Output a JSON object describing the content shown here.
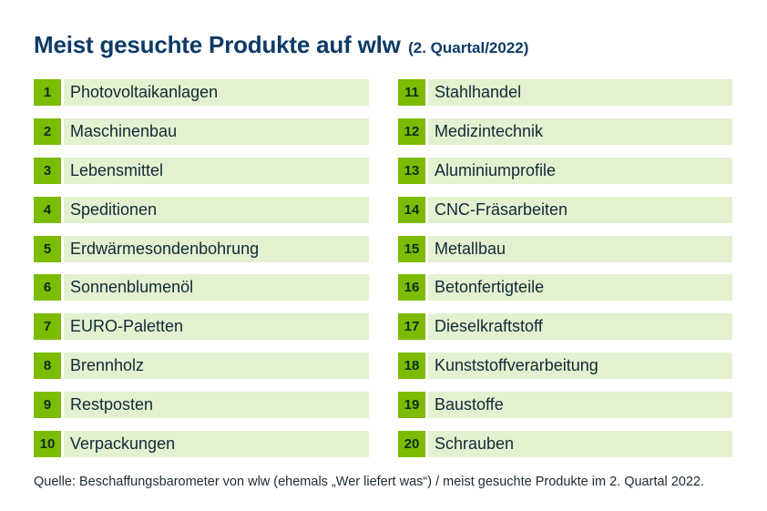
{
  "header": {
    "title": "Meist gesuchte Produkte auf wlw",
    "subtitle": "(2. Quartal/2022)"
  },
  "left_list": [
    {
      "rank": "1",
      "label": "Photovoltaikanlagen"
    },
    {
      "rank": "2",
      "label": "Maschinenbau"
    },
    {
      "rank": "3",
      "label": "Lebensmittel"
    },
    {
      "rank": "4",
      "label": "Speditionen"
    },
    {
      "rank": "5",
      "label": "Erdwärmesondenbohrung"
    },
    {
      "rank": "6",
      "label": "Sonnenblumenöl"
    },
    {
      "rank": "7",
      "label": "EURO-Paletten"
    },
    {
      "rank": "8",
      "label": "Brennholz"
    },
    {
      "rank": "9",
      "label": "Restposten"
    },
    {
      "rank": "10",
      "label": "Verpackungen"
    }
  ],
  "right_list": [
    {
      "rank": "11",
      "label": "Stahlhandel"
    },
    {
      "rank": "12",
      "label": "Medizintechnik"
    },
    {
      "rank": "13",
      "label": "Aluminiumprofile"
    },
    {
      "rank": "14",
      "label": "CNC-Fräsarbeiten"
    },
    {
      "rank": "15",
      "label": "Metallbau"
    },
    {
      "rank": "16",
      "label": "Betonfertigteile"
    },
    {
      "rank": "17",
      "label": "Dieselkraftstoff"
    },
    {
      "rank": "18",
      "label": "Kunststoffverarbeitung"
    },
    {
      "rank": "19",
      "label": "Baustoffe"
    },
    {
      "rank": "20",
      "label": "Schrauben"
    }
  ],
  "footer": {
    "source": "Quelle: Beschaffungsbarometer von wlw (ehemals „Wer liefert was“) / meist gesuchte Produkte im 2. Quartal 2022."
  },
  "colors": {
    "title": "#0d3b66",
    "rank_badge": "#7cbb00",
    "row_background": "#e4f1d0"
  }
}
